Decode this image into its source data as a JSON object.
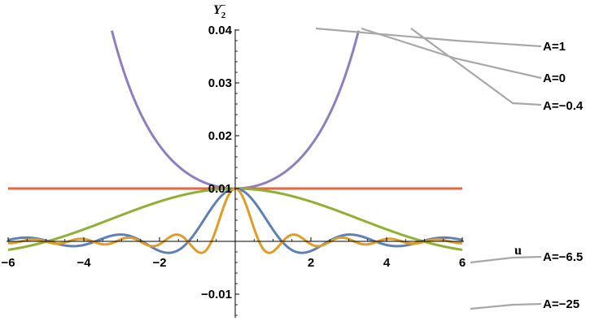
{
  "chart_data": {
    "type": "line",
    "title": "",
    "xlabel": "u",
    "ylabel_base": "Y",
    "ylabel_sub": "2",
    "ylabel_sup": "−",
    "xlim": [
      -6,
      6
    ],
    "ylim": [
      -0.0145,
      0.04
    ],
    "x_ticks": [
      -6,
      -4,
      -2,
      2,
      4,
      6
    ],
    "x_tick_labels": [
      "−6",
      "−4",
      "−2",
      "2",
      "4",
      "6"
    ],
    "y_ticks": [
      -0.01,
      0.01,
      0.02,
      0.03,
      0.04
    ],
    "y_tick_labels": [
      "−0.01",
      "0.01",
      "0.02",
      "0.03",
      "0.04"
    ],
    "grid": false,
    "legend_placement": "right, callout labels",
    "series": [
      {
        "name": "A=1",
        "color": "#8F7FBF",
        "A": 1
      },
      {
        "name": "A=0",
        "color": "#E2693F",
        "A": 0
      },
      {
        "name": "A=−0.4",
        "color": "#8FB032",
        "A": -0.4
      },
      {
        "name": "A=−6.5",
        "color": "#5E81B5",
        "A": -6.5
      },
      {
        "name": "A=−25",
        "color": "#E19C24",
        "A": -25
      }
    ]
  }
}
